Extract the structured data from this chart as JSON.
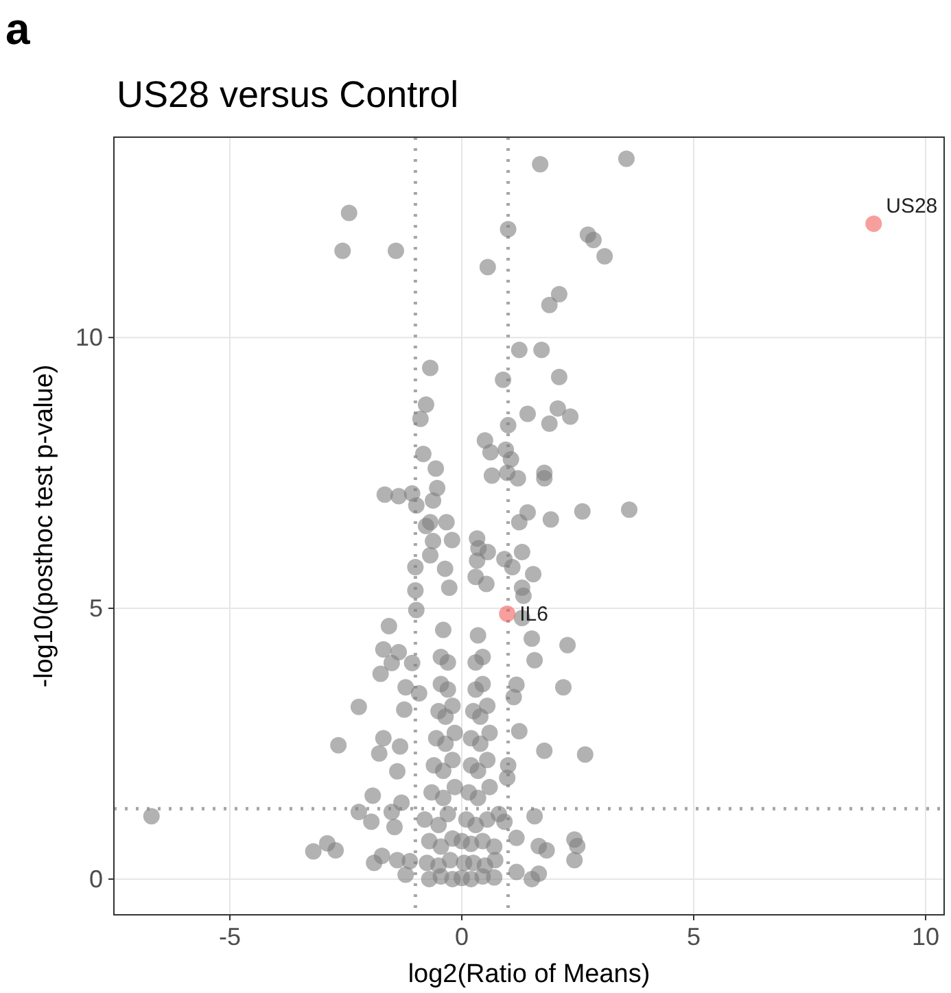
{
  "chart_data": {
    "type": "scatter",
    "title": "US28 versus Control",
    "xlabel": "log2(Ratio of Means)",
    "ylabel": "-log10(posthoc test p-value)",
    "xlim": [
      -7.5,
      10.4
    ],
    "ylim": [
      -0.66,
      13.7
    ],
    "xticks": [
      -5,
      0,
      5,
      10
    ],
    "yticks": [
      0,
      5,
      10
    ],
    "grid": true,
    "marker": "circle",
    "annotations": [
      "a",
      {
        "text": "US28",
        "x": 8.88,
        "y": 12.1
      },
      {
        "text": "IL6",
        "x": 0.98,
        "y": 4.9
      }
    ],
    "ref_lines": [
      {
        "axis": "x",
        "value": -1,
        "color": "#a6a6a6",
        "line_style": "dotted"
      },
      {
        "axis": "x",
        "value": 1,
        "color": "#a6a6a6",
        "line_style": "dotted"
      },
      {
        "axis": "y",
        "value": 1.3,
        "color": "#a6a6a6",
        "line_style": "dotted"
      }
    ],
    "series": [
      {
        "color": "#7f7f7f",
        "x": [
          3.55,
          1.69,
          -2.43,
          1.0,
          2.72,
          2.84,
          3.08,
          -2.57,
          -1.42,
          0.56,
          2.1,
          1.89,
          1.24,
          1.72,
          -0.68,
          0.89,
          2.1,
          -0.77,
          -0.89,
          1.42,
          2.07,
          2.34,
          1.89,
          1.0,
          0.5,
          0.95,
          0.62,
          1.06,
          -0.83,
          -0.56,
          0.65,
          1.21,
          1.78,
          1.78,
          0.98,
          -1.66,
          -1.36,
          -1.07,
          -0.98,
          -0.53,
          -0.62,
          2.6,
          3.61,
          1.42,
          1.92,
          1.24,
          -0.68,
          -0.33,
          -0.77,
          -0.21,
          0.33,
          -0.62,
          0.36,
          0.56,
          1.3,
          -0.68,
          0.92,
          0.33,
          1.09,
          -1.0,
          -0.36,
          1.54,
          0.3,
          0.53,
          -1.0,
          -0.27,
          1.3,
          1.33,
          -0.98,
          1.3,
          -1.57,
          1.51,
          2.28,
          -1.69,
          -1.36,
          -1.51,
          -1.07,
          1.57,
          -1.75,
          -1.21,
          -0.92,
          1.18,
          1.12,
          2.19,
          -2.22,
          -1.24,
          1.24,
          -1.69,
          -2.66,
          -1.78,
          -1.33,
          1.78,
          2.66,
          -1.39,
          1.0,
          0.98,
          -1.92,
          -1.3,
          -6.69,
          -2.22,
          -1.51,
          -1.95,
          1.57,
          0.92,
          -1.45,
          1.18,
          2.43,
          2.49,
          1.66,
          1.83,
          -3.2,
          -2.9,
          -2.72,
          2.43,
          -1.89,
          -1.72,
          -1.39,
          -1.12,
          -1.21,
          1.66,
          1.51,
          1.18,
          -0.7,
          -0.45,
          -0.2,
          0.0,
          0.2,
          0.45,
          0.7,
          -0.75,
          -0.5,
          -0.25,
          0.05,
          0.25,
          0.5,
          0.72,
          -0.7,
          -0.45,
          -0.2,
          0.0,
          0.2,
          0.45,
          0.7,
          -0.8,
          -0.5,
          -0.3,
          0.1,
          0.3,
          0.55,
          0.8,
          -0.65,
          -0.4,
          -0.15,
          0.15,
          0.35,
          0.6,
          -0.6,
          -0.4,
          -0.2,
          0.2,
          0.35,
          0.55,
          -0.55,
          -0.35,
          -0.15,
          0.2,
          0.4,
          0.6,
          -0.5,
          -0.35,
          -0.2,
          0.25,
          0.4,
          0.55,
          -0.45,
          -0.3,
          0.3,
          0.45,
          -0.45,
          -0.3,
          0.3,
          0.45,
          -0.4,
          0.35
        ],
        "values": [
          13.3,
          13.2,
          12.3,
          12.0,
          11.9,
          11.8,
          11.5,
          11.6,
          11.6,
          11.3,
          10.8,
          10.6,
          9.77,
          9.77,
          9.44,
          9.22,
          9.27,
          8.76,
          8.5,
          8.59,
          8.69,
          8.54,
          8.41,
          8.38,
          8.1,
          7.93,
          7.88,
          7.75,
          7.85,
          7.58,
          7.45,
          7.4,
          7.5,
          7.4,
          7.5,
          7.1,
          7.07,
          7.12,
          6.9,
          7.22,
          6.99,
          6.79,
          6.82,
          6.77,
          6.64,
          6.59,
          6.59,
          6.59,
          6.52,
          6.26,
          6.29,
          6.24,
          6.11,
          6.04,
          6.04,
          5.98,
          5.91,
          5.88,
          5.76,
          5.76,
          5.73,
          5.63,
          5.58,
          5.45,
          5.33,
          5.38,
          5.38,
          5.23,
          4.97,
          4.82,
          4.67,
          4.44,
          4.32,
          4.24,
          4.19,
          3.99,
          3.99,
          4.04,
          3.79,
          3.54,
          3.43,
          3.59,
          3.36,
          3.54,
          3.18,
          3.13,
          2.73,
          2.6,
          2.47,
          2.32,
          2.45,
          2.37,
          2.3,
          1.99,
          2.1,
          1.87,
          1.54,
          1.41,
          1.16,
          1.24,
          1.24,
          1.06,
          1.16,
          1.06,
          0.96,
          0.76,
          0.73,
          0.61,
          0.61,
          0.53,
          0.51,
          0.66,
          0.53,
          0.35,
          0.3,
          0.43,
          0.35,
          0.33,
          0.08,
          0.1,
          0.0,
          0.13,
          0.0,
          0.05,
          0.0,
          0.02,
          0.0,
          0.05,
          0.03,
          0.3,
          0.25,
          0.35,
          0.3,
          0.3,
          0.25,
          0.35,
          0.7,
          0.6,
          0.75,
          0.7,
          0.65,
          0.7,
          0.6,
          1.1,
          1.0,
          1.2,
          1.1,
          1.0,
          1.1,
          1.2,
          1.6,
          1.5,
          1.7,
          1.6,
          1.5,
          1.7,
          2.1,
          2.0,
          2.2,
          2.1,
          2.0,
          2.2,
          2.6,
          2.5,
          2.7,
          2.6,
          2.5,
          2.7,
          3.1,
          3.0,
          3.2,
          3.1,
          3.0,
          3.2,
          3.6,
          3.5,
          3.5,
          3.6,
          4.1,
          4.0,
          4.0,
          4.1,
          4.6,
          4.5
        ]
      },
      {
        "color": "#f25f5c",
        "x": [
          8.88,
          0.98
        ],
        "values": [
          12.1,
          4.9
        ]
      }
    ]
  }
}
